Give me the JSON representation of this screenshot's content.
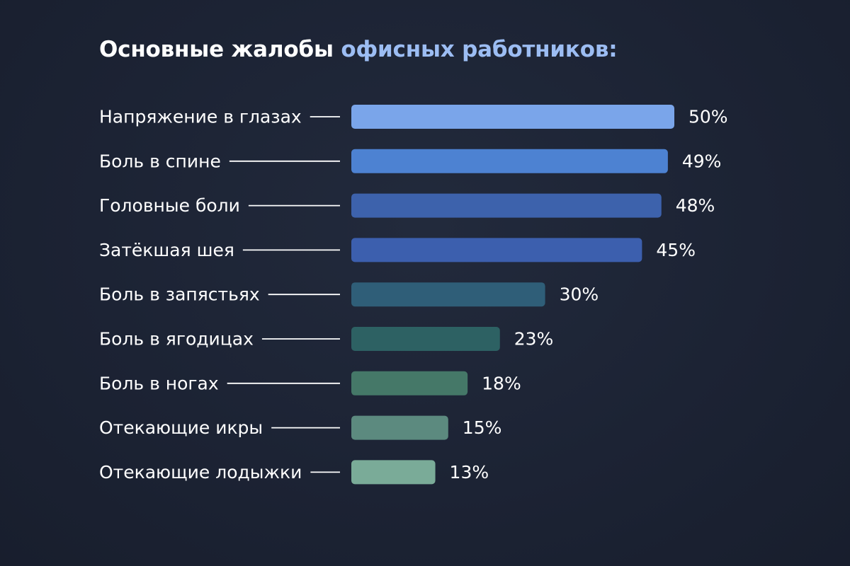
{
  "title": {
    "part1": "Основные жалобы",
    "part2": "офисных работников:",
    "color_part1": "#ffffff",
    "color_part2": "#9cbdf3"
  },
  "chart_data": {
    "type": "bar",
    "orientation": "horizontal",
    "categories": [
      "Напряжение в глазах",
      "Боль в спине",
      "Головные боли",
      "Затёкшая шея",
      "Боль в запястьях",
      "Боль в ягодицах",
      "Боль в ногах",
      "Отекающие икры",
      "Отекающие лодыжки"
    ],
    "values": [
      50,
      49,
      48,
      45,
      30,
      23,
      18,
      15,
      13
    ],
    "value_labels": [
      "50%",
      "49%",
      "48%",
      "45%",
      "30%",
      "23%",
      "18%",
      "15%",
      "13%"
    ],
    "bar_colors": [
      "#7aa5ea",
      "#4d82d2",
      "#3d62ac",
      "#3c5fae",
      "#2f5e78",
      "#2d6163",
      "#457868",
      "#5c8a7f",
      "#7aab98"
    ],
    "unit": "%",
    "grid": false,
    "legend": "none"
  }
}
